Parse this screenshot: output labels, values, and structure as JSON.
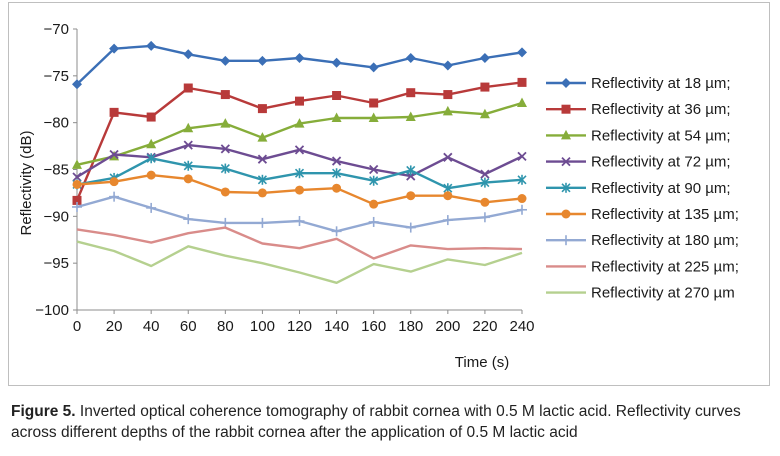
{
  "chart_data": {
    "type": "line",
    "title": "",
    "xlabel": "Time (s)",
    "ylabel": "Reflectivity (dB)",
    "x": [
      0,
      20,
      40,
      60,
      80,
      100,
      120,
      140,
      160,
      180,
      200,
      220,
      240
    ],
    "xlim": [
      0,
      240
    ],
    "ylim": [
      -100,
      -70
    ],
    "x_ticks": [
      "0",
      "20",
      "40",
      "60",
      "80",
      "100",
      "120",
      "140",
      "160",
      "180",
      "200",
      "220",
      "240"
    ],
    "y_ticks": [
      "−70",
      "−75",
      "−80",
      "−85",
      "−90",
      "−95",
      "−100"
    ],
    "y_tick_values": [
      -70,
      -75,
      -80,
      -85,
      -90,
      -95,
      -100
    ],
    "grid": false,
    "legend_position": "right",
    "series": [
      {
        "name": "Reflectivity at 18 µm;",
        "color": "#3b6fb6",
        "marker": "diamond",
        "values": [
          -75.9,
          -72.1,
          -71.8,
          -72.7,
          -73.4,
          -73.4,
          -73.1,
          -73.6,
          -74.1,
          -73.1,
          -73.9,
          -73.1,
          -72.5
        ]
      },
      {
        "name": "Reflectivity at 36 µm;",
        "color": "#b83a3a",
        "marker": "square",
        "values": [
          -88.3,
          -78.9,
          -79.4,
          -76.3,
          -77.0,
          -78.5,
          -77.7,
          -77.1,
          -77.9,
          -76.8,
          -77.0,
          -76.2,
          -75.7
        ]
      },
      {
        "name": "Reflectivity at 54 µm;",
        "color": "#86ad3a",
        "marker": "triangle",
        "values": [
          -84.5,
          -83.6,
          -82.3,
          -80.6,
          -80.1,
          -81.6,
          -80.1,
          -79.5,
          -79.5,
          -79.4,
          -78.8,
          -79.1,
          -77.9
        ]
      },
      {
        "name": "Reflectivity at 72 µm;",
        "color": "#6d4c92",
        "marker": "x",
        "values": [
          -85.8,
          -83.4,
          -83.7,
          -82.4,
          -82.8,
          -83.9,
          -82.9,
          -84.1,
          -85.0,
          -85.7,
          -83.7,
          -85.5,
          -83.6
        ]
      },
      {
        "name": "Reflectivity at 90 µm;",
        "color": "#2f95ad",
        "marker": "star",
        "values": [
          -86.6,
          -85.9,
          -83.8,
          -84.6,
          -84.9,
          -86.1,
          -85.4,
          -85.4,
          -86.2,
          -85.1,
          -87.0,
          -86.4,
          -86.1
        ]
      },
      {
        "name": "Reflectivity at 135 µm;",
        "color": "#e7872e",
        "marker": "circle",
        "values": [
          -86.6,
          -86.3,
          -85.6,
          -86.0,
          -87.4,
          -87.5,
          -87.2,
          -87.0,
          -88.7,
          -87.8,
          -87.8,
          -88.5,
          -88.1
        ]
      },
      {
        "name": "Reflectivity at 180 µm;",
        "color": "#93a9d3",
        "marker": "plus",
        "values": [
          -89.0,
          -87.9,
          -89.1,
          -90.3,
          -90.7,
          -90.7,
          -90.5,
          -91.6,
          -90.6,
          -91.2,
          -90.4,
          -90.1,
          -89.3
        ]
      },
      {
        "name": "Reflectivity at 225 µm;",
        "color": "#d98c8a",
        "marker": "none",
        "values": [
          -91.4,
          -92.0,
          -92.8,
          -91.8,
          -91.2,
          -92.9,
          -93.4,
          -92.4,
          -94.5,
          -93.1,
          -93.5,
          -93.4,
          -93.5
        ]
      },
      {
        "name": "Reflectivity at 270 µm",
        "color": "#b5d08f",
        "marker": "none",
        "values": [
          -92.7,
          -93.7,
          -95.3,
          -93.2,
          -94.2,
          -95.0,
          -96.0,
          -97.1,
          -95.1,
          -95.9,
          -94.6,
          -95.2,
          -93.9
        ]
      }
    ]
  },
  "caption": {
    "label": "Figure 5.",
    "text": " Inverted optical coherence tomography of rabbit cornea with 0.5 M lactic acid. Reflectivity curves across different depths of the rabbit cornea after the application of 0.5 M lactic acid"
  }
}
